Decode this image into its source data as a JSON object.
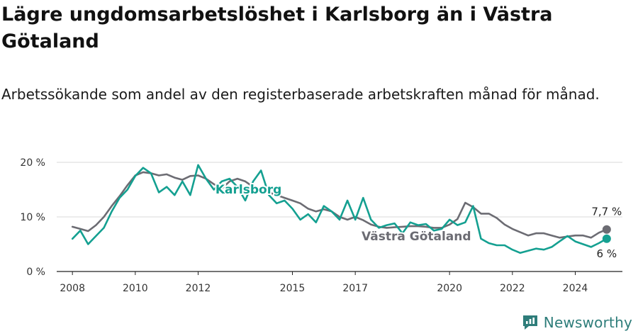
{
  "title": "Lägre ungdomsarbetslöshet i Karlsborg än i Västra Götaland",
  "subtitle": "Arbetssökande som andel av den registerbaserade arbetskraften månad för månad.",
  "brand": "Newsworthy",
  "colors": {
    "karlsborg": "#14a091",
    "vastra_gotaland": "#6c6c73",
    "grid": "#d9d9d9",
    "axis": "#222222",
    "brand": "#2e7d7a"
  },
  "chart_data": {
    "type": "line",
    "xlim": [
      2007.5,
      2025.5
    ],
    "ylim": [
      0,
      20
    ],
    "x_ticks": [
      {
        "value": 2008,
        "label": "2008"
      },
      {
        "value": 2010,
        "label": "2010"
      },
      {
        "value": 2012,
        "label": "2012"
      },
      {
        "value": 2015,
        "label": "2015"
      },
      {
        "value": 2017,
        "label": "2017"
      },
      {
        "value": 2020,
        "label": "2020"
      },
      {
        "value": 2022,
        "label": "2022"
      },
      {
        "value": 2024,
        "label": "2024"
      }
    ],
    "y_ticks": [
      {
        "value": 0,
        "label": "0 %"
      },
      {
        "value": 10,
        "label": "10 %"
      },
      {
        "value": 20,
        "label": "20 %"
      }
    ],
    "grid": true,
    "series": [
      {
        "name": "Västra Götaland",
        "color": "#6c6c73",
        "end_label": "7,7 %",
        "points": [
          [
            2008.0,
            8.2
          ],
          [
            2008.25,
            7.8
          ],
          [
            2008.5,
            7.4
          ],
          [
            2008.75,
            8.5
          ],
          [
            2009.0,
            10.0
          ],
          [
            2009.25,
            12.0
          ],
          [
            2009.5,
            13.8
          ],
          [
            2009.75,
            15.8
          ],
          [
            2010.0,
            17.6
          ],
          [
            2010.25,
            18.2
          ],
          [
            2010.5,
            18.0
          ],
          [
            2010.75,
            17.6
          ],
          [
            2011.0,
            17.8
          ],
          [
            2011.25,
            17.2
          ],
          [
            2011.5,
            16.8
          ],
          [
            2011.75,
            17.5
          ],
          [
            2012.0,
            17.6
          ],
          [
            2012.25,
            17.0
          ],
          [
            2012.5,
            16.0
          ],
          [
            2012.75,
            15.2
          ],
          [
            2013.0,
            16.5
          ],
          [
            2013.25,
            17.0
          ],
          [
            2013.5,
            16.5
          ],
          [
            2013.75,
            15.5
          ],
          [
            2014.0,
            15.0
          ],
          [
            2014.25,
            14.5
          ],
          [
            2014.5,
            14.0
          ],
          [
            2014.75,
            13.5
          ],
          [
            2015.0,
            13.0
          ],
          [
            2015.25,
            12.5
          ],
          [
            2015.5,
            11.5
          ],
          [
            2015.75,
            11.0
          ],
          [
            2016.0,
            11.4
          ],
          [
            2016.25,
            11.0
          ],
          [
            2016.5,
            10.0
          ],
          [
            2016.75,
            9.5
          ],
          [
            2017.0,
            10.0
          ],
          [
            2017.25,
            9.4
          ],
          [
            2017.5,
            8.6
          ],
          [
            2017.75,
            8.2
          ],
          [
            2018.0,
            8.0
          ],
          [
            2018.25,
            8.1
          ],
          [
            2018.5,
            8.2
          ],
          [
            2018.75,
            8.3
          ],
          [
            2019.0,
            8.3
          ],
          [
            2019.25,
            8.2
          ],
          [
            2019.5,
            8.0
          ],
          [
            2019.75,
            8.0
          ],
          [
            2020.0,
            8.6
          ],
          [
            2020.25,
            9.6
          ],
          [
            2020.5,
            12.6
          ],
          [
            2020.75,
            11.8
          ],
          [
            2021.0,
            10.6
          ],
          [
            2021.25,
            10.6
          ],
          [
            2021.5,
            9.8
          ],
          [
            2021.75,
            8.6
          ],
          [
            2022.0,
            7.8
          ],
          [
            2022.25,
            7.2
          ],
          [
            2022.5,
            6.6
          ],
          [
            2022.75,
            7.0
          ],
          [
            2023.0,
            7.0
          ],
          [
            2023.25,
            6.6
          ],
          [
            2023.5,
            6.2
          ],
          [
            2023.75,
            6.4
          ],
          [
            2024.0,
            6.6
          ],
          [
            2024.25,
            6.6
          ],
          [
            2024.5,
            6.2
          ],
          [
            2024.75,
            7.1
          ],
          [
            2025.0,
            7.7
          ]
        ]
      },
      {
        "name": "Karlsborg",
        "color": "#14a091",
        "end_label": "6 %",
        "points": [
          [
            2008.0,
            6.0
          ],
          [
            2008.25,
            7.5
          ],
          [
            2008.5,
            5.0
          ],
          [
            2008.75,
            6.5
          ],
          [
            2009.0,
            8.0
          ],
          [
            2009.25,
            11.0
          ],
          [
            2009.5,
            13.5
          ],
          [
            2009.75,
            15.0
          ],
          [
            2010.0,
            17.5
          ],
          [
            2010.25,
            19.0
          ],
          [
            2010.5,
            18.0
          ],
          [
            2010.75,
            14.5
          ],
          [
            2011.0,
            15.5
          ],
          [
            2011.25,
            14.0
          ],
          [
            2011.5,
            16.5
          ],
          [
            2011.75,
            14.0
          ],
          [
            2012.0,
            19.5
          ],
          [
            2012.25,
            17.0
          ],
          [
            2012.5,
            15.0
          ],
          [
            2012.75,
            16.5
          ],
          [
            2013.0,
            17.0
          ],
          [
            2013.25,
            15.5
          ],
          [
            2013.5,
            13.0
          ],
          [
            2013.75,
            16.5
          ],
          [
            2014.0,
            18.5
          ],
          [
            2014.25,
            14.0
          ],
          [
            2014.5,
            12.5
          ],
          [
            2014.75,
            13.0
          ],
          [
            2015.0,
            11.5
          ],
          [
            2015.25,
            9.5
          ],
          [
            2015.5,
            10.5
          ],
          [
            2015.75,
            9.0
          ],
          [
            2016.0,
            12.0
          ],
          [
            2016.25,
            11.0
          ],
          [
            2016.5,
            9.5
          ],
          [
            2016.75,
            13.0
          ],
          [
            2017.0,
            9.5
          ],
          [
            2017.25,
            13.5
          ],
          [
            2017.5,
            9.5
          ],
          [
            2017.75,
            8.0
          ],
          [
            2018.0,
            8.5
          ],
          [
            2018.25,
            8.8
          ],
          [
            2018.5,
            7.0
          ],
          [
            2018.75,
            9.0
          ],
          [
            2019.0,
            8.5
          ],
          [
            2019.25,
            8.7
          ],
          [
            2019.5,
            7.5
          ],
          [
            2019.75,
            7.8
          ],
          [
            2020.0,
            9.5
          ],
          [
            2020.25,
            8.5
          ],
          [
            2020.5,
            9.0
          ],
          [
            2020.75,
            12.0
          ],
          [
            2021.0,
            6.0
          ],
          [
            2021.25,
            5.2
          ],
          [
            2021.5,
            4.8
          ],
          [
            2021.75,
            4.8
          ],
          [
            2022.0,
            4.0
          ],
          [
            2022.25,
            3.4
          ],
          [
            2022.5,
            3.8
          ],
          [
            2022.75,
            4.2
          ],
          [
            2023.0,
            4.0
          ],
          [
            2023.25,
            4.5
          ],
          [
            2023.5,
            5.5
          ],
          [
            2023.75,
            6.5
          ],
          [
            2024.0,
            5.5
          ],
          [
            2024.25,
            5.0
          ],
          [
            2024.5,
            4.5
          ],
          [
            2024.75,
            5.2
          ],
          [
            2025.0,
            6.0
          ]
        ]
      }
    ]
  }
}
